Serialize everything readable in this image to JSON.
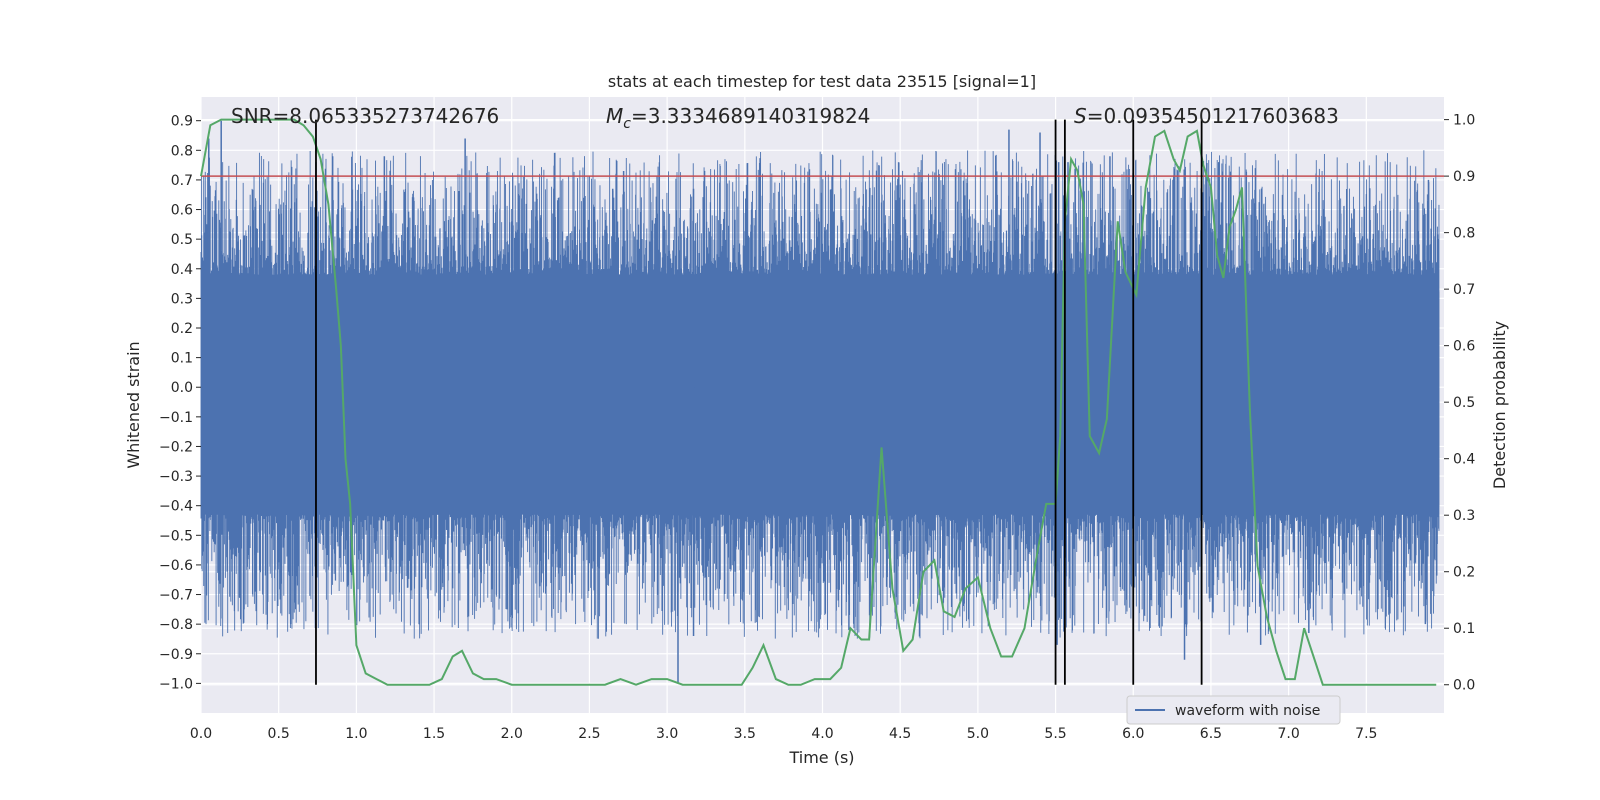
{
  "chart_data": {
    "type": "line",
    "title": "stats at each timestep for test data 23515 [signal=1]",
    "xlabel": "Time (s)",
    "ylabel_left": "Whitened strain",
    "ylabel_right": "Detection probability",
    "xlim": [
      0.0,
      8.0
    ],
    "ylim_left": [
      -1.1,
      0.98
    ],
    "ylim_right": [
      -0.05,
      1.04
    ],
    "xticks": [
      "0.0",
      "0.5",
      "1.0",
      "1.5",
      "2.0",
      "2.5",
      "3.0",
      "3.5",
      "4.0",
      "4.5",
      "5.0",
      "5.5",
      "6.0",
      "6.5",
      "7.0",
      "7.5"
    ],
    "yticks_left": [
      "0.9",
      "0.8",
      "0.7",
      "0.6",
      "0.5",
      "0.4",
      "0.3",
      "0.2",
      "0.1",
      "0.0",
      "-0.1",
      "-0.2",
      "-0.3",
      "-0.4",
      "-0.5",
      "-0.6",
      "-0.7",
      "-0.8",
      "-0.9",
      "-1.0"
    ],
    "yticks_right": [
      "1.0",
      "0.9",
      "0.8",
      "0.7",
      "0.6",
      "0.5",
      "0.4",
      "0.3",
      "0.2",
      "0.1",
      "0.0"
    ],
    "annotations": {
      "snr": "SNR=8.065335273742676",
      "mc_symbol": "M",
      "mc_sub": "c",
      "mc_value": "=3.3334689140319824",
      "s_symbol": "S",
      "s_value": "=0.09354501217603683"
    },
    "threshold": 0.9,
    "vlines": [
      0.74,
      5.5,
      5.56,
      6.0,
      6.44
    ],
    "legend": {
      "label": "waveform with noise",
      "loc": "lower right"
    },
    "series": [
      {
        "name": "waveform with noise",
        "color": "#4c72b0",
        "axis": "left",
        "noise_base": 0.38,
        "spikes": [
          {
            "x": 0.13,
            "y": 0.9
          },
          {
            "x": 0.05,
            "y": 0.84
          },
          {
            "x": 0.74,
            "y": 0.76
          },
          {
            "x": 1.18,
            "y": 0.78
          },
          {
            "x": 1.7,
            "y": 0.84
          },
          {
            "x": 2.65,
            "y": 0.67
          },
          {
            "x": 2.72,
            "y": 0.73
          },
          {
            "x": 3.17,
            "y": 0.67
          },
          {
            "x": 4.75,
            "y": 0.72
          },
          {
            "x": 5.2,
            "y": 0.87
          },
          {
            "x": 5.4,
            "y": 0.86
          },
          {
            "x": 5.52,
            "y": 0.76
          },
          {
            "x": 5.58,
            "y": 0.76
          },
          {
            "x": 5.85,
            "y": 0.78
          },
          {
            "x": 6.1,
            "y": 0.66
          },
          {
            "x": 6.33,
            "y": 0.72
          },
          {
            "x": 6.55,
            "y": 0.76
          },
          {
            "x": 7.9,
            "y": 0.7
          },
          {
            "x": 3.07,
            "y": -1.0
          },
          {
            "x": 3.17,
            "y": -0.84
          },
          {
            "x": 4.17,
            "y": -0.82
          },
          {
            "x": 5.51,
            "y": -0.87
          },
          {
            "x": 6.33,
            "y": -0.92
          },
          {
            "x": 6.82,
            "y": -0.87
          },
          {
            "x": 7.13,
            "y": -0.83
          },
          {
            "x": 7.88,
            "y": -0.8
          },
          {
            "x": 1.97,
            "y": -0.75
          },
          {
            "x": 0.35,
            "y": -0.69
          }
        ]
      },
      {
        "name": "detection probability",
        "color": "#55a868",
        "axis": "right",
        "x": [
          0.0,
          0.06,
          0.13,
          0.2,
          0.3,
          0.4,
          0.5,
          0.6,
          0.66,
          0.72,
          0.77,
          0.82,
          0.87,
          0.9,
          0.93,
          0.96,
          1.0,
          1.06,
          1.13,
          1.2,
          1.3,
          1.4,
          1.47,
          1.55,
          1.62,
          1.68,
          1.75,
          1.82,
          1.9,
          2.0,
          2.1,
          2.2,
          2.3,
          2.4,
          2.5,
          2.6,
          2.7,
          2.8,
          2.9,
          3.0,
          3.1,
          3.2,
          3.3,
          3.4,
          3.48,
          3.55,
          3.62,
          3.7,
          3.78,
          3.86,
          3.95,
          4.05,
          4.12,
          4.18,
          4.25,
          4.3,
          4.38,
          4.45,
          4.52,
          4.58,
          4.65,
          4.72,
          4.78,
          4.85,
          4.92,
          5.0,
          5.08,
          5.15,
          5.22,
          5.3,
          5.38,
          5.44,
          5.5,
          5.53,
          5.56,
          5.6,
          5.64,
          5.68,
          5.72,
          5.78,
          5.83,
          5.9,
          5.95,
          6.02,
          6.08,
          6.14,
          6.2,
          6.26,
          6.3,
          6.35,
          6.41,
          6.45,
          6.5,
          6.54,
          6.58,
          6.62,
          6.66,
          6.7,
          6.75,
          6.8,
          6.86,
          6.92,
          6.98,
          7.04,
          7.1,
          7.16,
          7.22,
          7.28,
          7.4,
          7.6,
          7.8,
          7.95
        ],
        "y": [
          0.9,
          0.99,
          1.0,
          1.0,
          1.0,
          1.0,
          1.0,
          1.0,
          0.99,
          0.97,
          0.93,
          0.85,
          0.7,
          0.6,
          0.4,
          0.32,
          0.07,
          0.02,
          0.01,
          0.0,
          0.0,
          0.0,
          0.0,
          0.01,
          0.05,
          0.06,
          0.02,
          0.01,
          0.01,
          0.0,
          0.0,
          0.0,
          0.0,
          0.0,
          0.0,
          0.0,
          0.01,
          0.0,
          0.01,
          0.01,
          0.0,
          0.0,
          0.0,
          0.0,
          0.0,
          0.03,
          0.07,
          0.01,
          0.0,
          0.0,
          0.01,
          0.01,
          0.03,
          0.1,
          0.08,
          0.08,
          0.42,
          0.17,
          0.06,
          0.08,
          0.2,
          0.22,
          0.13,
          0.12,
          0.17,
          0.19,
          0.1,
          0.05,
          0.05,
          0.1,
          0.23,
          0.32,
          0.32,
          0.44,
          0.82,
          0.93,
          0.91,
          0.85,
          0.44,
          0.41,
          0.47,
          0.82,
          0.73,
          0.69,
          0.88,
          0.97,
          0.98,
          0.93,
          0.91,
          0.97,
          0.98,
          0.92,
          0.88,
          0.76,
          0.72,
          0.81,
          0.84,
          0.88,
          0.49,
          0.21,
          0.12,
          0.06,
          0.01,
          0.01,
          0.1,
          0.05,
          0.0,
          0.0,
          0.0,
          0.0,
          0.0,
          0.0
        ]
      }
    ]
  }
}
